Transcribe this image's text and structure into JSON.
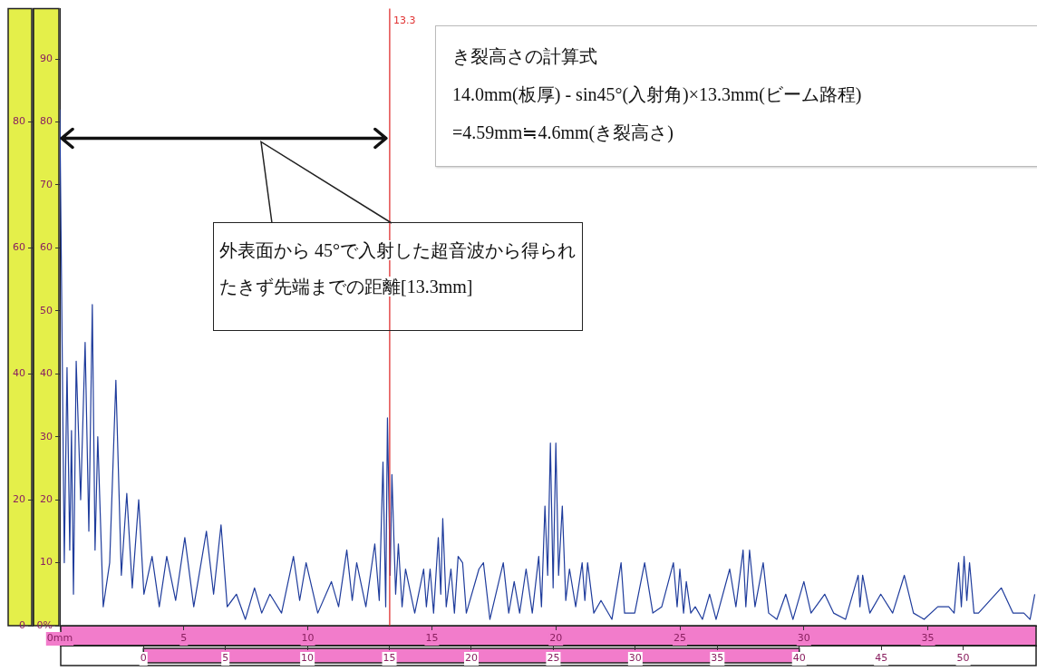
{
  "chart_data": {
    "type": "line",
    "x": [
      0,
      0.18,
      0.29,
      0.4,
      0.47,
      0.55,
      0.66,
      0.84,
      1.02,
      1.17,
      1.31,
      1.42,
      1.53,
      1.75,
      2.01,
      2.26,
      2.48,
      2.7,
      2.92,
      3.18,
      3.39,
      3.72,
      4.01,
      4.31,
      4.67,
      5.04,
      5.4,
      5.91,
      6.2,
      6.5,
      6.75,
      7.12,
      7.48,
      7.85,
      8.14,
      8.47,
      8.94,
      9.42,
      9.67,
      9.93,
      10.4,
      10.95,
      11.24,
      11.57,
      11.79,
      11.97,
      12.34,
      12.7,
      12.88,
      13.03,
      13.14,
      13.21,
      13.32,
      13.39,
      13.54,
      13.65,
      13.8,
      13.94,
      14.31,
      14.67,
      14.78,
      14.93,
      15.07,
      15.26,
      15.36,
      15.44,
      15.58,
      15.77,
      15.91,
      16.06,
      16.24,
      16.39,
      16.9,
      17.08,
      17.34,
      17.88,
      18.1,
      18.32,
      18.54,
      18.8,
      19.05,
      19.31,
      19.42,
      19.56,
      19.67,
      19.78,
      19.89,
      20.0,
      20.11,
      20.26,
      20.4,
      20.55,
      20.8,
      21.06,
      21.17,
      21.28,
      21.53,
      21.82,
      22.26,
      22.63,
      22.77,
      23.18,
      23.58,
      23.91,
      24.27,
      24.74,
      24.89,
      25.0,
      25.15,
      25.26,
      25.44,
      25.62,
      25.91,
      26.2,
      26.46,
      27.01,
      27.26,
      27.55,
      27.66,
      27.81,
      28.03,
      28.36,
      28.58,
      28.91,
      29.27,
      29.56,
      30.0,
      30.29,
      30.84,
      31.2,
      31.68,
      32.19,
      32.26,
      32.37,
      32.66,
      33.1,
      33.58,
      34.05,
      34.42,
      34.85,
      35.4,
      35.84,
      36.06,
      36.24,
      36.35,
      36.46,
      36.57,
      36.68,
      36.86,
      37.04,
      37.96,
      38.43,
      38.87,
      39.12,
      39.31
    ],
    "series": [
      {
        "color": "#1f3c9c",
        "values": [
          82,
          10,
          41,
          12,
          31,
          5,
          42,
          20,
          45,
          15,
          51,
          12,
          30,
          3,
          10,
          39,
          8,
          21,
          6,
          20,
          5,
          11,
          3,
          11,
          4,
          14,
          3,
          15,
          5,
          16,
          3,
          5,
          1,
          6,
          2,
          5,
          2,
          11,
          4,
          10,
          2,
          7,
          3,
          12,
          4,
          10,
          3,
          13,
          4,
          26,
          3,
          33,
          8,
          24,
          5,
          13,
          3,
          9,
          2,
          9,
          3,
          9,
          2,
          14,
          5,
          17,
          3,
          9,
          2,
          11,
          10,
          2,
          9,
          10,
          1,
          10,
          2,
          7,
          2,
          9,
          2,
          11,
          3,
          19,
          8,
          29,
          6,
          29,
          8,
          19,
          4,
          9,
          3,
          10,
          4,
          10,
          2,
          4,
          1,
          10,
          2,
          2,
          10,
          2,
          3,
          10,
          3,
          9,
          2,
          7,
          2,
          3,
          1,
          5,
          1,
          9,
          3,
          12,
          3,
          12,
          3,
          10,
          2,
          1,
          5,
          1,
          7,
          2,
          5,
          2,
          1,
          8,
          3,
          8,
          2,
          5,
          2,
          8,
          2,
          1,
          3,
          3,
          2,
          10,
          3,
          11,
          4,
          10,
          2,
          2,
          6,
          2,
          2,
          1,
          5
        ]
      }
    ],
    "xlim": [
      0,
      39.4
    ],
    "xticks": [
      {
        "value": 0,
        "label": "0mm"
      },
      5,
      10,
      15,
      20,
      25,
      30,
      35
    ],
    "x2lim": [
      -5.1,
      54.5
    ],
    "x2ticks": [
      0,
      5,
      10,
      15,
      20,
      25,
      30,
      35,
      40,
      45,
      50
    ],
    "ylim": [
      0,
      98
    ],
    "yticks": [
      {
        "value": 0,
        "label": "0%"
      },
      10,
      20,
      30,
      40,
      50,
      60,
      70,
      80,
      90
    ],
    "y2lim": [
      0,
      98
    ],
    "y2ticks": [
      0,
      20,
      40,
      60,
      80
    ],
    "grid": false,
    "ref_lines": [
      {
        "axis": "x",
        "value": 13.3,
        "label": "13.3",
        "color": "#e03030"
      }
    ],
    "annotations": [
      "き裂高さの計算式",
      "14.0mm(板厚) - sin45°(入射角)×13.3mm(ビーム路程)",
      "=4.59mm≒4.6mm(き裂高さ)",
      "外表面から 45°で入射した超音波から得られたきず先端までの距離[13.3mm]"
    ]
  }
}
